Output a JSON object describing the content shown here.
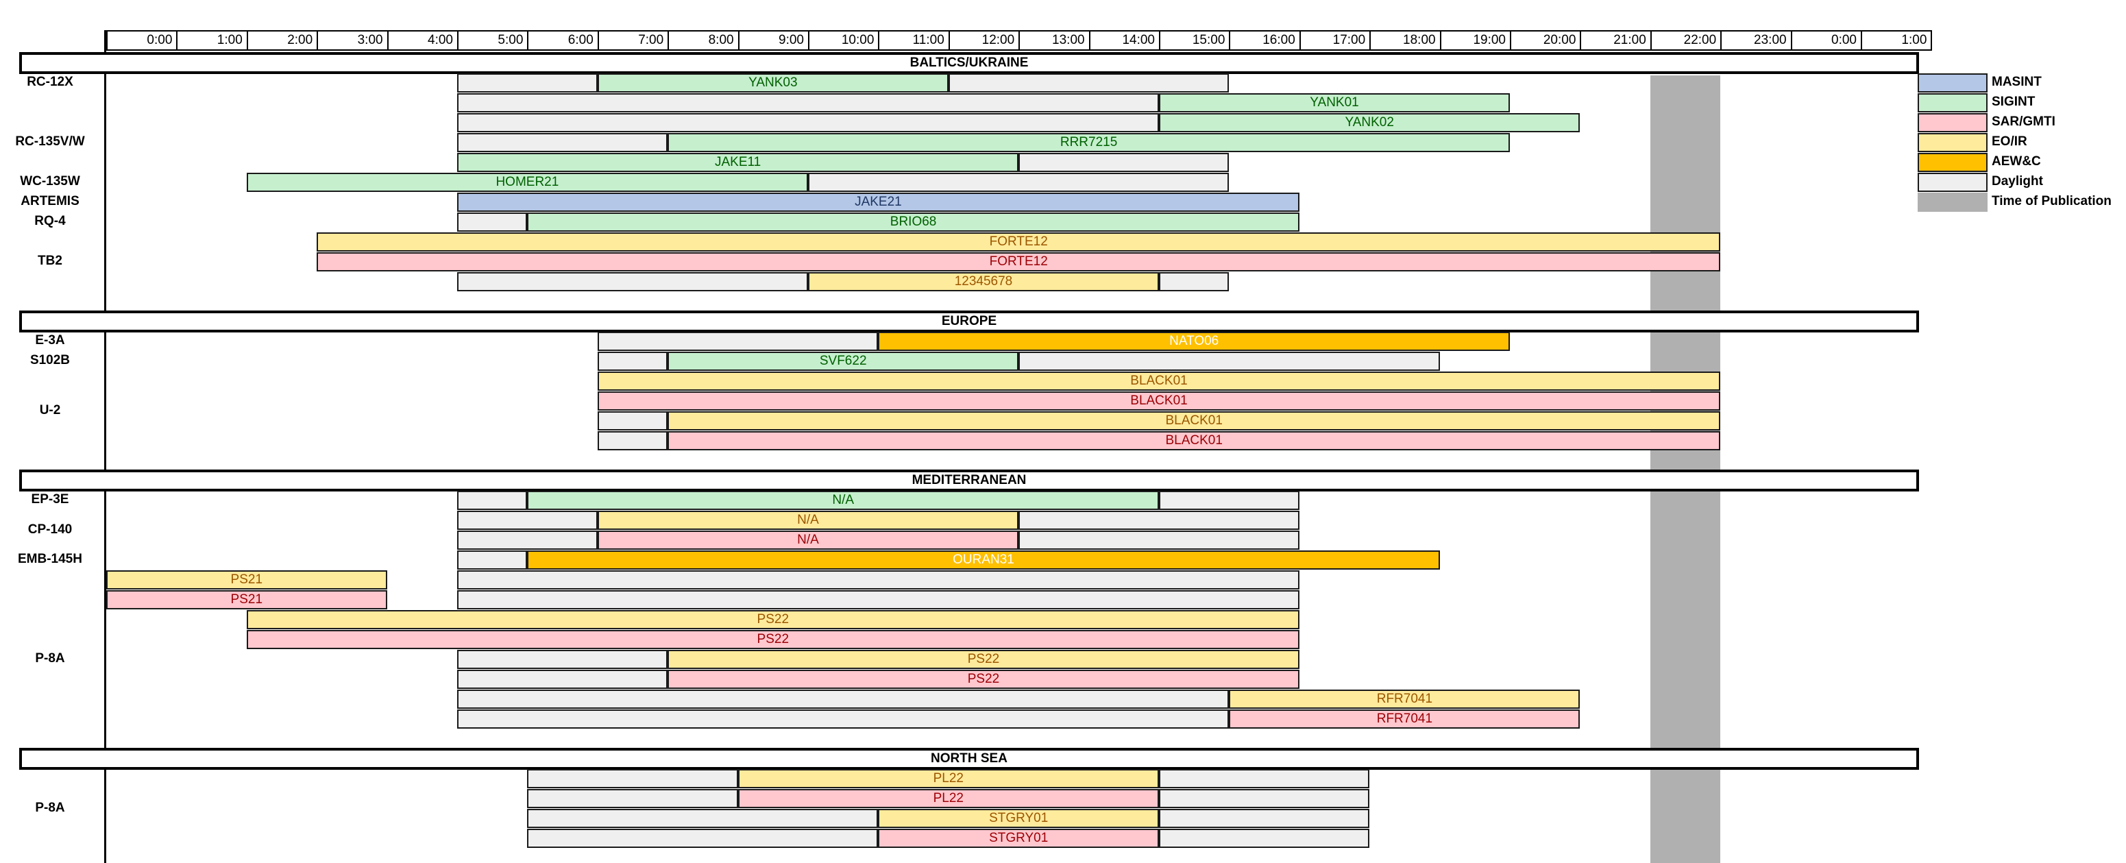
{
  "time_ticks": [
    "0:00",
    "1:00",
    "2:00",
    "3:00",
    "4:00",
    "5:00",
    "6:00",
    "7:00",
    "8:00",
    "9:00",
    "10:00",
    "11:00",
    "12:00",
    "13:00",
    "14:00",
    "15:00",
    "16:00",
    "17:00",
    "18:00",
    "19:00",
    "20:00",
    "21:00",
    "22:00",
    "23:00",
    "0:00",
    "1:00"
  ],
  "time_of_publication": [
    22,
    23
  ],
  "colors": {
    "MASINT": "#b4c7e7",
    "SIGINT": "#c6efce",
    "SAR/GMTI": "#ffc7ce",
    "EO/IR": "#ffeb9c",
    "AEW&C": "#ffc000",
    "Daylight": "#efefef",
    "Time of Publication": "#b0b0b0"
  },
  "text_colors": {
    "MASINT": "#1f3864",
    "SIGINT": "#006100",
    "SAR/GMTI": "#9c0006",
    "EO/IR": "#9c5700",
    "AEW&C": "#ffffff",
    "Daylight": "#000000"
  },
  "legend": [
    "MASINT",
    "SIGINT",
    "SAR/GMTI",
    "EO/IR",
    "AEW&C",
    "Daylight",
    "Time of Publication"
  ],
  "regions": [
    {
      "name": "BALTICS/UKRAINE",
      "row": 0
    },
    {
      "name": "EUROPE",
      "row": 13
    },
    {
      "name": "MEDITERRANEAN",
      "row": 21
    },
    {
      "name": "NORTH SEA",
      "row": 35
    }
  ],
  "aircraft": [
    {
      "label": "RC-12X",
      "row": 1.0
    },
    {
      "label": "RC-135V/W",
      "row": 4.0
    },
    {
      "label": "WC-135W",
      "row": 6.0
    },
    {
      "label": "ARTEMIS",
      "row": 7.0
    },
    {
      "label": "RQ-4",
      "row": 8.0
    },
    {
      "label": "TB2",
      "row": 10.0
    },
    {
      "label": "E-3A",
      "row": 14.0
    },
    {
      "label": "S102B",
      "row": 15.0
    },
    {
      "label": "U-2",
      "row": 17.5
    },
    {
      "label": "EP-3E",
      "row": 22.0
    },
    {
      "label": "CP-140",
      "row": 23.5
    },
    {
      "label": "EMB-145H",
      "row": 25.0
    },
    {
      "label": "P-8A",
      "row": 30.0
    },
    {
      "label": "P-8A",
      "row": 37.5
    }
  ],
  "chart_data": {
    "type": "timeline",
    "x_unit": "hour",
    "rows": [
      {
        "row": 1,
        "bars": [
          {
            "type": "Daylight",
            "start": 5,
            "end": 7,
            "label": ""
          },
          {
            "type": "SIGINT",
            "start": 7,
            "end": 12,
            "label": "YANK03"
          },
          {
            "type": "Daylight",
            "start": 12,
            "end": 16,
            "label": ""
          }
        ]
      },
      {
        "row": 2,
        "bars": [
          {
            "type": "Daylight",
            "start": 5,
            "end": 15,
            "label": ""
          },
          {
            "type": "SIGINT",
            "start": 15,
            "end": 20,
            "label": "YANK01"
          }
        ]
      },
      {
        "row": 3,
        "bars": [
          {
            "type": "Daylight",
            "start": 5,
            "end": 15,
            "label": ""
          },
          {
            "type": "SIGINT",
            "start": 15,
            "end": 21,
            "label": "YANK02"
          }
        ]
      },
      {
        "row": 4,
        "bars": [
          {
            "type": "Daylight",
            "start": 5,
            "end": 8,
            "label": ""
          },
          {
            "type": "SIGINT",
            "start": 8,
            "end": 20,
            "label": "RRR7215"
          }
        ]
      },
      {
        "row": 5,
        "bars": [
          {
            "type": "SIGINT",
            "start": 5,
            "end": 13,
            "label": "JAKE11"
          },
          {
            "type": "Daylight",
            "start": 13,
            "end": 16,
            "label": ""
          }
        ]
      },
      {
        "row": 6,
        "bars": [
          {
            "type": "SIGINT",
            "start": 2,
            "end": 10,
            "label": "HOMER21"
          },
          {
            "type": "Daylight",
            "start": 10,
            "end": 16,
            "label": ""
          }
        ]
      },
      {
        "row": 7,
        "bars": [
          {
            "type": "MASINT",
            "start": 5,
            "end": 17,
            "label": "JAKE21"
          }
        ]
      },
      {
        "row": 8,
        "bars": [
          {
            "type": "Daylight",
            "start": 5,
            "end": 6,
            "label": ""
          },
          {
            "type": "SIGINT",
            "start": 6,
            "end": 17,
            "label": "BRIO68"
          }
        ]
      },
      {
        "row": 9,
        "bars": [
          {
            "type": "EO/IR",
            "start": 3,
            "end": 23,
            "label": "FORTE12"
          }
        ]
      },
      {
        "row": 10,
        "bars": [
          {
            "type": "SAR/GMTI",
            "start": 3,
            "end": 23,
            "label": "FORTE12"
          }
        ]
      },
      {
        "row": 11,
        "bars": [
          {
            "type": "Daylight",
            "start": 5,
            "end": 10,
            "label": ""
          },
          {
            "type": "EO/IR",
            "start": 10,
            "end": 15,
            "label": "12345678"
          },
          {
            "type": "Daylight",
            "start": 15,
            "end": 16,
            "label": ""
          }
        ]
      },
      {
        "row": 14,
        "bars": [
          {
            "type": "Daylight",
            "start": 7,
            "end": 11,
            "label": ""
          },
          {
            "type": "AEW&C",
            "start": 11,
            "end": 20,
            "label": "NATO06"
          }
        ]
      },
      {
        "row": 15,
        "bars": [
          {
            "type": "Daylight",
            "start": 7,
            "end": 8,
            "label": ""
          },
          {
            "type": "SIGINT",
            "start": 8,
            "end": 13,
            "label": "SVF622"
          },
          {
            "type": "Daylight",
            "start": 13,
            "end": 19,
            "label": ""
          }
        ]
      },
      {
        "row": 16,
        "bars": [
          {
            "type": "EO/IR",
            "start": 7,
            "end": 23,
            "label": "BLACK01"
          }
        ]
      },
      {
        "row": 17,
        "bars": [
          {
            "type": "SAR/GMTI",
            "start": 7,
            "end": 23,
            "label": "BLACK01"
          }
        ]
      },
      {
        "row": 18,
        "bars": [
          {
            "type": "Daylight",
            "start": 7,
            "end": 8,
            "label": ""
          },
          {
            "type": "EO/IR",
            "start": 8,
            "end": 23,
            "label": "BLACK01"
          }
        ]
      },
      {
        "row": 19,
        "bars": [
          {
            "type": "Daylight",
            "start": 7,
            "end": 8,
            "label": ""
          },
          {
            "type": "SAR/GMTI",
            "start": 8,
            "end": 23,
            "label": "BLACK01"
          }
        ]
      },
      {
        "row": 22,
        "bars": [
          {
            "type": "Daylight",
            "start": 5,
            "end": 6,
            "label": ""
          },
          {
            "type": "SIGINT",
            "start": 6,
            "end": 15,
            "label": "N/A"
          },
          {
            "type": "Daylight",
            "start": 15,
            "end": 17,
            "label": ""
          }
        ]
      },
      {
        "row": 23,
        "bars": [
          {
            "type": "Daylight",
            "start": 5,
            "end": 7,
            "label": ""
          },
          {
            "type": "EO/IR",
            "start": 7,
            "end": 13,
            "label": "N/A"
          },
          {
            "type": "Daylight",
            "start": 13,
            "end": 17,
            "label": ""
          }
        ]
      },
      {
        "row": 24,
        "bars": [
          {
            "type": "Daylight",
            "start": 5,
            "end": 7,
            "label": ""
          },
          {
            "type": "SAR/GMTI",
            "start": 7,
            "end": 13,
            "label": "N/A"
          },
          {
            "type": "Daylight",
            "start": 13,
            "end": 17,
            "label": ""
          }
        ]
      },
      {
        "row": 25,
        "bars": [
          {
            "type": "Daylight",
            "start": 5,
            "end": 6,
            "label": ""
          },
          {
            "type": "AEW&C",
            "start": 6,
            "end": 19,
            "label": "OURAN31"
          }
        ]
      },
      {
        "row": 26,
        "bars": [
          {
            "type": "EO/IR",
            "start": 0,
            "end": 4,
            "label": "PS21"
          },
          {
            "type": "Daylight",
            "start": 5,
            "end": 17,
            "label": ""
          }
        ]
      },
      {
        "row": 27,
        "bars": [
          {
            "type": "SAR/GMTI",
            "start": 0,
            "end": 4,
            "label": "PS21"
          },
          {
            "type": "Daylight",
            "start": 5,
            "end": 17,
            "label": ""
          }
        ]
      },
      {
        "row": 28,
        "bars": [
          {
            "type": "EO/IR",
            "start": 2,
            "end": 17,
            "label": "PS22"
          }
        ]
      },
      {
        "row": 29,
        "bars": [
          {
            "type": "SAR/GMTI",
            "start": 2,
            "end": 17,
            "label": "PS22"
          }
        ]
      },
      {
        "row": 30,
        "bars": [
          {
            "type": "Daylight",
            "start": 5,
            "end": 8,
            "label": ""
          },
          {
            "type": "EO/IR",
            "start": 8,
            "end": 17,
            "label": "PS22"
          }
        ]
      },
      {
        "row": 31,
        "bars": [
          {
            "type": "Daylight",
            "start": 5,
            "end": 8,
            "label": ""
          },
          {
            "type": "SAR/GMTI",
            "start": 8,
            "end": 17,
            "label": "PS22"
          }
        ]
      },
      {
        "row": 32,
        "bars": [
          {
            "type": "Daylight",
            "start": 5,
            "end": 16,
            "label": ""
          },
          {
            "type": "EO/IR",
            "start": 16,
            "end": 21,
            "label": "RFR7041"
          }
        ]
      },
      {
        "row": 33,
        "bars": [
          {
            "type": "Daylight",
            "start": 5,
            "end": 16,
            "label": ""
          },
          {
            "type": "SAR/GMTI",
            "start": 16,
            "end": 21,
            "label": "RFR7041"
          }
        ]
      },
      {
        "row": 36,
        "bars": [
          {
            "type": "Daylight",
            "start": 6,
            "end": 9,
            "label": ""
          },
          {
            "type": "EO/IR",
            "start": 9,
            "end": 15,
            "label": "PL22"
          },
          {
            "type": "Daylight",
            "start": 15,
            "end": 18,
            "label": ""
          }
        ]
      },
      {
        "row": 37,
        "bars": [
          {
            "type": "Daylight",
            "start": 6,
            "end": 9,
            "label": ""
          },
          {
            "type": "SAR/GMTI",
            "start": 9,
            "end": 15,
            "label": "PL22"
          },
          {
            "type": "Daylight",
            "start": 15,
            "end": 18,
            "label": ""
          }
        ]
      },
      {
        "row": 38,
        "bars": [
          {
            "type": "Daylight",
            "start": 6,
            "end": 11,
            "label": ""
          },
          {
            "type": "EO/IR",
            "start": 11,
            "end": 15,
            "label": "STGRY01"
          },
          {
            "type": "Daylight",
            "start": 15,
            "end": 18,
            "label": ""
          }
        ]
      },
      {
        "row": 39,
        "bars": [
          {
            "type": "Daylight",
            "start": 6,
            "end": 11,
            "label": ""
          },
          {
            "type": "SAR/GMTI",
            "start": 11,
            "end": 15,
            "label": "STGRY01"
          },
          {
            "type": "Daylight",
            "start": 15,
            "end": 18,
            "label": ""
          }
        ]
      }
    ]
  }
}
